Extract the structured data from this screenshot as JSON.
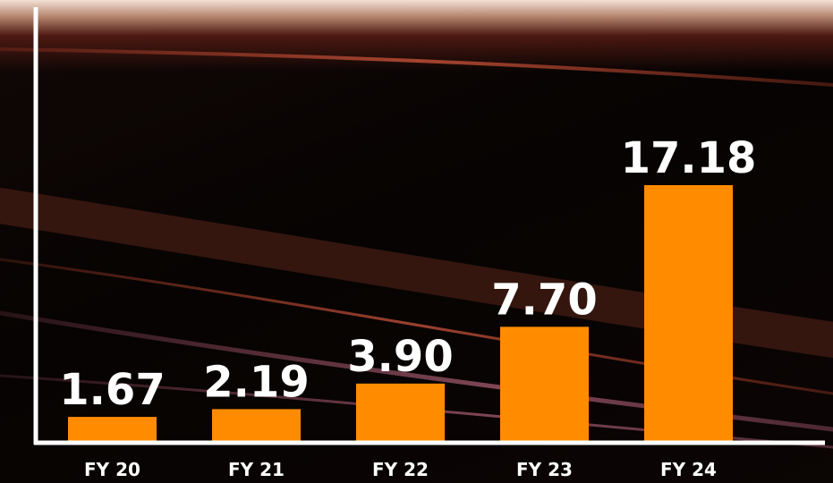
{
  "colors": {
    "bar": "#ff8c00",
    "axis": "#ffffff",
    "label": "#ffffff"
  },
  "chart_data": {
    "type": "bar",
    "title": "",
    "xlabel": "",
    "ylabel": "",
    "categories": [
      "FY 20",
      "FY 21",
      "FY 22",
      "FY 23",
      "FY 24"
    ],
    "values": [
      1.67,
      2.19,
      3.9,
      7.7,
      17.18
    ],
    "data_labels": [
      "1.67",
      "2.19",
      "3.90",
      "7.70",
      "17.18"
    ],
    "ylim": [
      0,
      17.18
    ],
    "grid": false,
    "legend": "none"
  }
}
